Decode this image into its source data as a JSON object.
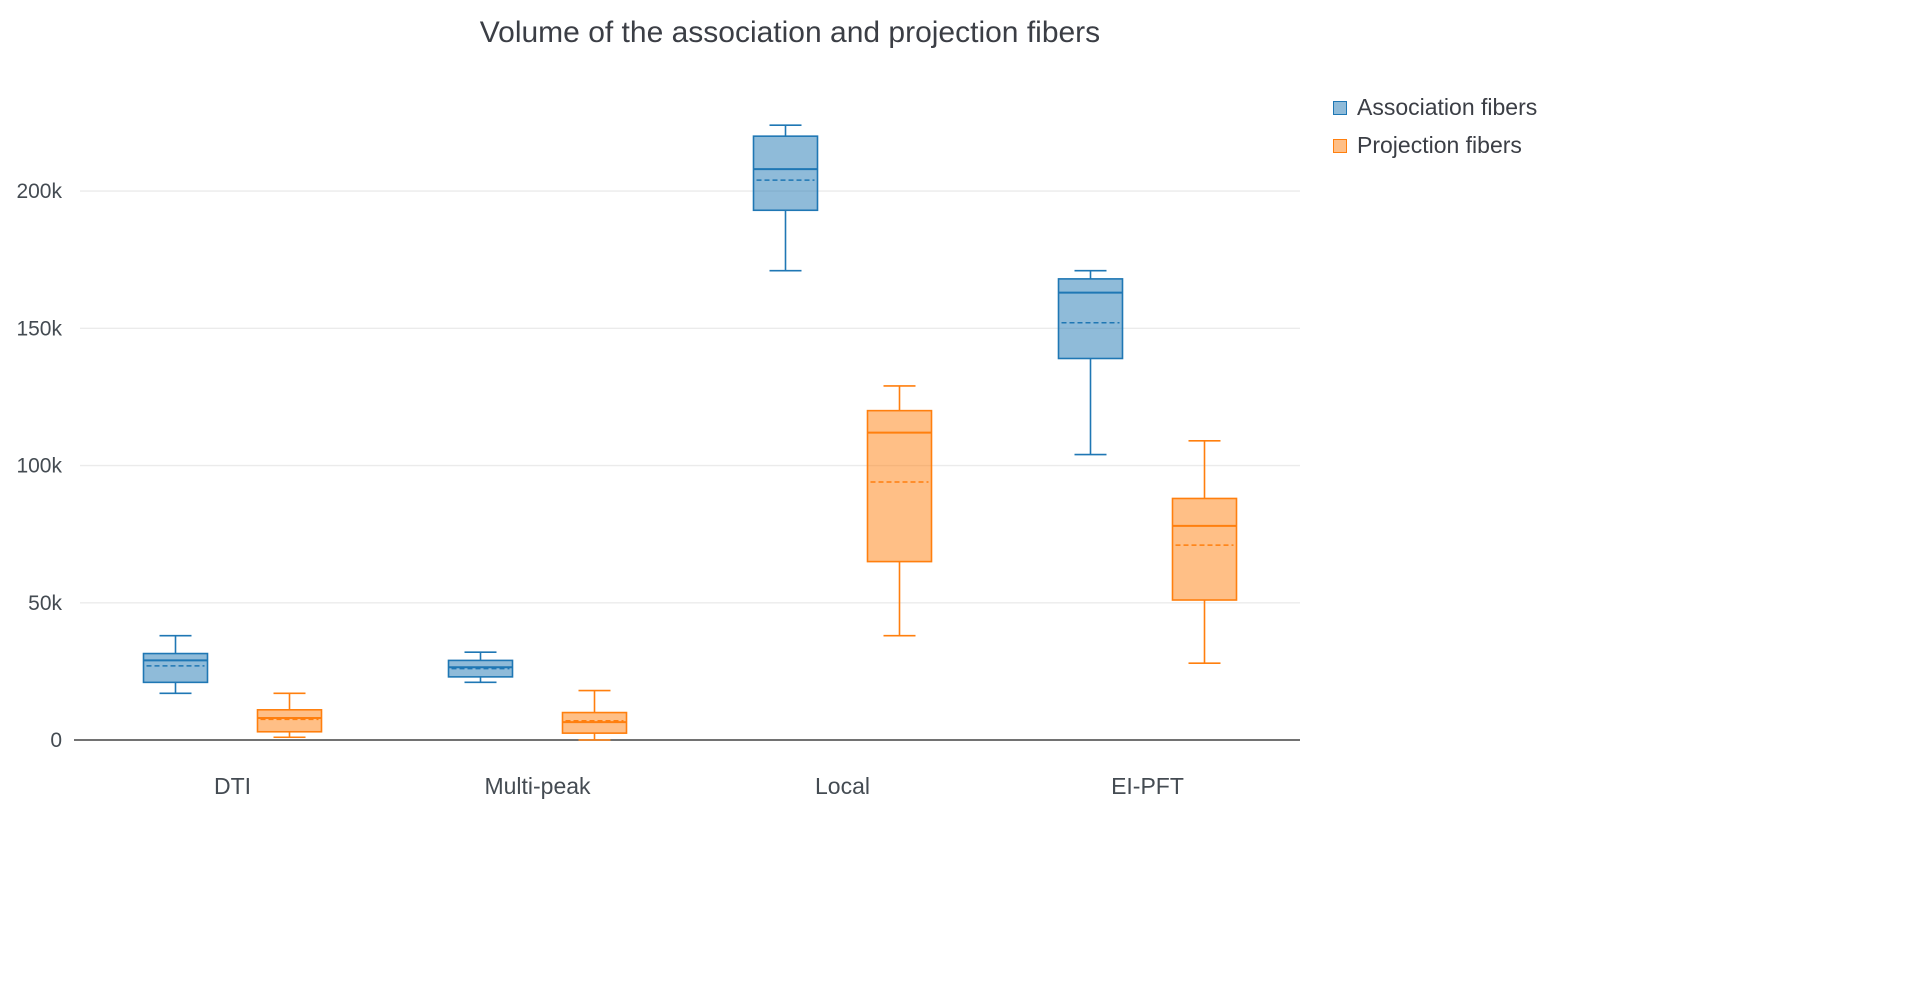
{
  "chart_data": {
    "type": "box",
    "title": "Volume of the association and projection fibers",
    "categories": [
      "DTI",
      "Multi-peak",
      "Local",
      "EI-PFT"
    ],
    "xlabel": "",
    "ylabel": "",
    "ylim": [
      0,
      235000
    ],
    "grid": true,
    "legend_position": "top-right",
    "yticks": [
      {
        "v": 0,
        "label": "0"
      },
      {
        "v": 50000,
        "label": "50k"
      },
      {
        "v": 100000,
        "label": "100k"
      },
      {
        "v": 150000,
        "label": "150k"
      },
      {
        "v": 200000,
        "label": "200k"
      }
    ],
    "series": [
      {
        "name": "Association fibers",
        "color": "#1f77b4",
        "boxes": [
          {
            "category": "DTI",
            "min": 17000,
            "q1": 21000,
            "median": 29000,
            "mean": 27000,
            "q3": 31500,
            "max": 38000
          },
          {
            "category": "Multi-peak",
            "min": 21000,
            "q1": 23000,
            "median": 26500,
            "mean": 26000,
            "q3": 29000,
            "max": 32000
          },
          {
            "category": "Local",
            "min": 171000,
            "q1": 193000,
            "median": 208000,
            "mean": 204000,
            "q3": 220000,
            "max": 224000
          },
          {
            "category": "EI-PFT",
            "min": 104000,
            "q1": 139000,
            "median": 163000,
            "mean": 152000,
            "q3": 168000,
            "max": 171000
          }
        ]
      },
      {
        "name": "Projection fibers",
        "color": "#ff7f0e",
        "boxes": [
          {
            "category": "DTI",
            "min": 1000,
            "q1": 3000,
            "median": 8000,
            "mean": 7500,
            "q3": 11000,
            "max": 17000
          },
          {
            "category": "Multi-peak",
            "min": 0,
            "q1": 2500,
            "median": 6500,
            "mean": 7000,
            "q3": 10000,
            "max": 18000
          },
          {
            "category": "Local",
            "min": 38000,
            "q1": 65000,
            "median": 112000,
            "mean": 94000,
            "q3": 120000,
            "max": 129000
          },
          {
            "category": "EI-PFT",
            "min": 28000,
            "q1": 51000,
            "median": 78000,
            "mean": 71000,
            "q3": 88000,
            "max": 109000
          }
        ]
      }
    ],
    "colors": {
      "axis_line": "#444444",
      "gridline": "#ebebeb",
      "text": "#444b52"
    }
  }
}
